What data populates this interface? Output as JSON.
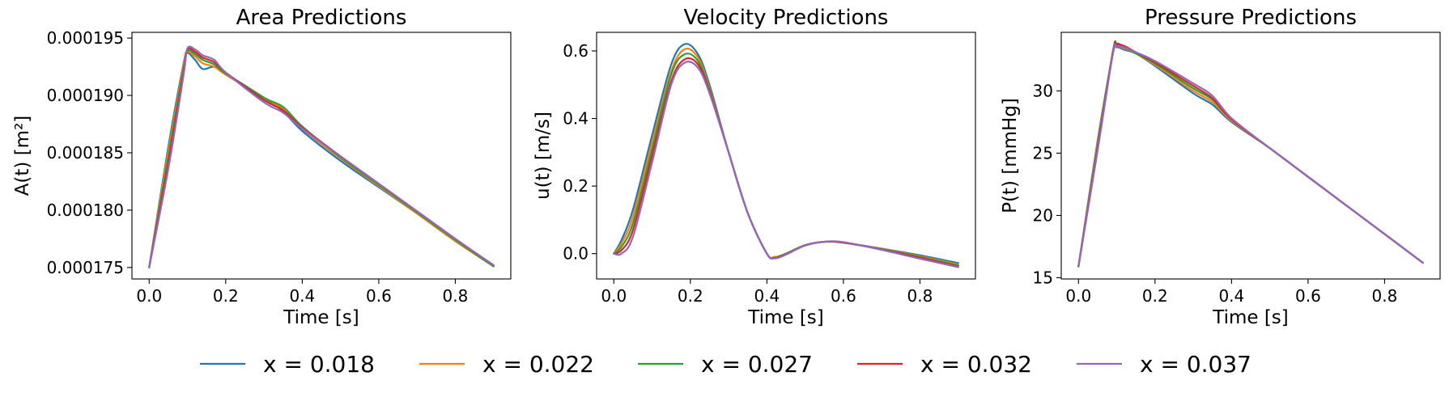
{
  "colors": {
    "x = 0.018": "#1f77b4",
    "x = 0.022": "#ff7f0e",
    "x = 0.027": "#2ca02c",
    "x = 0.032": "#d62728",
    "x = 0.037": "#9467bd"
  },
  "legend": {
    "placement": "bottom-center",
    "entries": [
      "x = 0.018",
      "x = 0.022",
      "x = 0.027",
      "x = 0.032",
      "x = 0.037"
    ]
  },
  "chart_data": [
    {
      "type": "line",
      "title": "Area Predictions",
      "xlabel": "Time [s]",
      "ylabel": "A(t) [m²]",
      "xlim": [
        -0.045,
        0.945
      ],
      "ylim": [
        0.000174,
        0.0001955
      ],
      "xticks": [
        "0.0",
        "0.2",
        "0.4",
        "0.6",
        "0.8"
      ],
      "yticks": [
        "0.000175",
        "0.000180",
        "0.000185",
        "0.000190",
        "0.000195"
      ],
      "x": [
        0,
        0.05,
        0.09,
        0.1,
        0.12,
        0.14,
        0.17,
        0.2,
        0.3,
        0.35,
        0.4,
        0.5,
        0.6,
        0.7,
        0.8,
        0.9
      ],
      "series": [
        {
          "name": "x = 0.018",
          "values": [
            0.000175,
            0.0001855,
            0.0001928,
            0.0001937,
            0.0001931,
            0.0001923,
            0.0001925,
            0.0001919,
            0.0001898,
            0.0001886,
            0.0001869,
            0.0001843,
            0.000182,
            0.0001797,
            0.0001773,
            0.0001751
          ]
        },
        {
          "name": "x = 0.022",
          "values": [
            0.000175,
            0.0001851,
            0.0001927,
            0.0001938,
            0.0001934,
            0.0001928,
            0.0001925,
            0.0001918,
            0.0001898,
            0.0001888,
            0.0001871,
            0.0001845,
            0.0001821,
            0.0001797,
            0.0001773,
            0.0001751
          ]
        },
        {
          "name": "x = 0.027",
          "values": [
            0.000175,
            0.0001846,
            0.0001924,
            0.0001939,
            0.0001936,
            0.0001931,
            0.0001927,
            0.0001919,
            0.0001898,
            0.000189,
            0.0001873,
            0.0001846,
            0.0001822,
            0.0001798,
            0.0001774,
            0.0001751
          ]
        },
        {
          "name": "x = 0.032",
          "values": [
            0.000175,
            0.0001841,
            0.0001921,
            0.000194,
            0.0001938,
            0.0001933,
            0.0001929,
            0.000192,
            0.0001896,
            0.0001887,
            0.0001872,
            0.0001847,
            0.0001823,
            0.0001799,
            0.0001775,
            0.0001752
          ]
        },
        {
          "name": "x = 0.037",
          "values": [
            0.000175,
            0.0001836,
            0.0001918,
            0.0001941,
            0.000194,
            0.0001935,
            0.0001931,
            0.000192,
            0.0001894,
            0.0001885,
            0.0001871,
            0.0001847,
            0.0001823,
            0.0001799,
            0.0001775,
            0.0001752
          ]
        }
      ]
    },
    {
      "type": "line",
      "title": "Velocity Predictions",
      "xlabel": "Time [s]",
      "ylabel": "u(t) [m/s]",
      "xlim": [
        -0.045,
        0.945
      ],
      "ylim": [
        -0.075,
        0.655
      ],
      "xticks": [
        "0.0",
        "0.2",
        "0.4",
        "0.6",
        "0.8"
      ],
      "yticks": [
        "0.0",
        "0.2",
        "0.4",
        "0.6"
      ],
      "x": [
        0,
        0.02,
        0.05,
        0.1,
        0.15,
        0.185,
        0.22,
        0.25,
        0.3,
        0.35,
        0.4,
        0.42,
        0.45,
        0.5,
        0.55,
        0.6,
        0.7,
        0.8,
        0.9
      ],
      "series": [
        {
          "name": "x = 0.018",
          "values": [
            0.0,
            0.04,
            0.13,
            0.35,
            0.56,
            0.62,
            0.59,
            0.5,
            0.3,
            0.12,
            0.0,
            -0.01,
            0.0,
            0.025,
            0.035,
            0.032,
            0.015,
            -0.005,
            -0.028
          ]
        },
        {
          "name": "x = 0.022",
          "values": [
            0.0,
            0.03,
            0.11,
            0.33,
            0.54,
            0.605,
            0.58,
            0.49,
            0.3,
            0.12,
            0.0,
            -0.01,
            0.0,
            0.025,
            0.035,
            0.032,
            0.014,
            -0.008,
            -0.032
          ]
        },
        {
          "name": "x = 0.027",
          "values": [
            0.0,
            0.02,
            0.09,
            0.31,
            0.53,
            0.59,
            0.57,
            0.485,
            0.3,
            0.12,
            0.0,
            -0.012,
            0.0,
            0.025,
            0.035,
            0.033,
            0.013,
            -0.01,
            -0.035
          ]
        },
        {
          "name": "x = 0.032",
          "values": [
            0.0,
            0.01,
            0.07,
            0.29,
            0.51,
            0.575,
            0.56,
            0.48,
            0.3,
            0.12,
            0.0,
            -0.013,
            -0.002,
            0.024,
            0.035,
            0.033,
            0.012,
            -0.012,
            -0.038
          ]
        },
        {
          "name": "x = 0.037",
          "values": [
            0.0,
            0.0,
            0.05,
            0.27,
            0.5,
            0.565,
            0.55,
            0.475,
            0.3,
            0.12,
            0.0,
            -0.014,
            -0.003,
            0.024,
            0.035,
            0.034,
            0.011,
            -0.015,
            -0.04
          ]
        }
      ]
    },
    {
      "type": "line",
      "title": "Pressure Predictions",
      "xlabel": "Time [s]",
      "ylabel": "P(t) [mmHg]",
      "xlim": [
        -0.045,
        0.945
      ],
      "ylim": [
        14.9,
        34.7
      ],
      "xticks": [
        "0.0",
        "0.2",
        "0.4",
        "0.6",
        "0.8"
      ],
      "yticks": [
        "15",
        "20",
        "25",
        "30"
      ],
      "x": [
        0,
        0.05,
        0.09,
        0.1,
        0.12,
        0.15,
        0.2,
        0.3,
        0.35,
        0.4,
        0.5,
        0.6,
        0.7,
        0.8,
        0.9
      ],
      "series": [
        {
          "name": "x = 0.018",
          "values": [
            15.9,
            26.0,
            33.0,
            33.5,
            33.3,
            33.0,
            32.0,
            29.8,
            28.9,
            27.5,
            25.4,
            23.1,
            20.8,
            18.5,
            16.2
          ]
        },
        {
          "name": "x = 0.022",
          "values": [
            15.9,
            25.8,
            33.1,
            33.6,
            33.4,
            33.0,
            32.1,
            30.0,
            29.1,
            27.6,
            25.4,
            23.1,
            20.8,
            18.5,
            16.2
          ]
        },
        {
          "name": "x = 0.027",
          "values": [
            15.9,
            25.6,
            33.2,
            33.8,
            33.5,
            33.0,
            32.2,
            30.2,
            29.3,
            27.7,
            25.4,
            23.1,
            20.8,
            18.5,
            16.2
          ]
        },
        {
          "name": "x = 0.032",
          "values": [
            15.9,
            25.4,
            33.1,
            33.7,
            33.6,
            33.1,
            32.3,
            30.4,
            29.4,
            27.7,
            25.4,
            23.1,
            20.8,
            18.5,
            16.2
          ]
        },
        {
          "name": "x = 0.037",
          "values": [
            15.9,
            25.2,
            33.0,
            33.5,
            33.5,
            33.1,
            32.4,
            30.6,
            29.6,
            27.8,
            25.4,
            23.1,
            20.8,
            18.5,
            16.2
          ]
        }
      ]
    }
  ]
}
